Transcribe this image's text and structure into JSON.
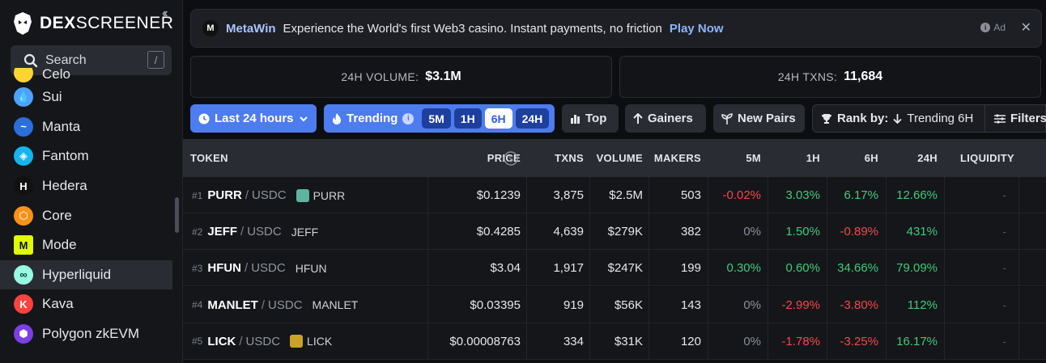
{
  "sidebar": {
    "logo_bold": "DEX",
    "logo_rest": "SCREENER",
    "collapse_icon": "chevrons-left-icon",
    "search": {
      "label": "Search",
      "shortcut": "/"
    },
    "chains": [
      {
        "name": "Celo",
        "color": "#fcd535",
        "glyph": ""
      },
      {
        "name": "Sui",
        "color": "#4da2ff",
        "glyph": "💧"
      },
      {
        "name": "Manta",
        "color": "#2a6fdb",
        "glyph": "~"
      },
      {
        "name": "Fantom",
        "color": "#13b5ec",
        "glyph": "◈"
      },
      {
        "name": "Hedera",
        "color": "#111111",
        "glyph": "H"
      },
      {
        "name": "Core",
        "color": "#f7931a",
        "glyph": "⬡"
      },
      {
        "name": "Mode",
        "color": "#dffe00",
        "glyph": "M"
      },
      {
        "name": "Hyperliquid",
        "color": "#97fce4",
        "glyph": "∞"
      },
      {
        "name": "Kava",
        "color": "#ff433e",
        "glyph": "K"
      },
      {
        "name": "Polygon zkEVM",
        "color": "#7b3fe4",
        "glyph": "⬢"
      }
    ],
    "active_chain": "Hyperliquid"
  },
  "ad": {
    "brand": "MetaWin",
    "text": "Experience the World's first Web3 casino. Instant payments, no friction",
    "cta": "Play Now",
    "tag": "Ad"
  },
  "stats": {
    "volume_label": "24H VOLUME:",
    "volume_value": "$3.1M",
    "txns_label": "24H TXNS:",
    "txns_value": "11,684"
  },
  "toolbar": {
    "time_range": "Last 24 hours",
    "trending": "Trending",
    "timeframes": [
      "5M",
      "1H",
      "6H",
      "24H"
    ],
    "active_timeframe": "6H",
    "top": "Top",
    "gainers": "Gainers",
    "new_pairs": "New Pairs",
    "rank_by_label": "Rank by:",
    "rank_by_value": "Trending 6H",
    "filters": "Filters"
  },
  "table": {
    "headers": {
      "token": "TOKEN",
      "price": "PRICE",
      "txns": "TXNS",
      "volume": "VOLUME",
      "makers": "MAKERS",
      "m5": "5M",
      "h1": "1H",
      "h6": "6H",
      "h24": "24H",
      "liquidity": "LIQUIDITY"
    },
    "rows": [
      {
        "rank": "#1",
        "symbol": "PURR",
        "quote": "USDC",
        "name": "PURR",
        "icon_color": "#5fb3a1",
        "price": "$0.1239",
        "txns": "3,875",
        "volume": "$2.5M",
        "makers": "503",
        "m5": "-0.02%",
        "m5_c": "red",
        "h1": "3.03%",
        "h1_c": "green",
        "h6": "6.17%",
        "h6_c": "green",
        "h24": "12.66%",
        "h24_c": "green",
        "liquidity": "-"
      },
      {
        "rank": "#2",
        "symbol": "JEFF",
        "quote": "USDC",
        "name": "JEFF",
        "icon_color": "",
        "price": "$0.4285",
        "txns": "4,639",
        "volume": "$279K",
        "makers": "382",
        "m5": "0%",
        "m5_c": "muted",
        "h1": "1.50%",
        "h1_c": "green",
        "h6": "-0.89%",
        "h6_c": "red",
        "h24": "431%",
        "h24_c": "green",
        "liquidity": "-"
      },
      {
        "rank": "#3",
        "symbol": "HFUN",
        "quote": "USDC",
        "name": "HFUN",
        "icon_color": "",
        "price": "$3.04",
        "txns": "1,917",
        "volume": "$247K",
        "makers": "199",
        "m5": "0.30%",
        "m5_c": "green",
        "h1": "0.60%",
        "h1_c": "green",
        "h6": "34.66%",
        "h6_c": "green",
        "h24": "79.09%",
        "h24_c": "green",
        "liquidity": "-"
      },
      {
        "rank": "#4",
        "symbol": "MANLET",
        "quote": "USDC",
        "name": "MANLET",
        "icon_color": "",
        "price": "$0.03395",
        "txns": "919",
        "volume": "$56K",
        "makers": "143",
        "m5": "0%",
        "m5_c": "muted",
        "h1": "-2.99%",
        "h1_c": "red",
        "h6": "-3.80%",
        "h6_c": "red",
        "h24": "112%",
        "h24_c": "green",
        "liquidity": "-"
      },
      {
        "rank": "#5",
        "symbol": "LICK",
        "quote": "USDC",
        "name": "LICK",
        "icon_color": "#c9a227",
        "price": "$0.00008763",
        "txns": "334",
        "volume": "$31K",
        "makers": "120",
        "m5": "0%",
        "m5_c": "muted",
        "h1": "-1.78%",
        "h1_c": "red",
        "h6": "-3.25%",
        "h6_c": "red",
        "h24": "16.17%",
        "h24_c": "green",
        "liquidity": "-"
      }
    ]
  }
}
